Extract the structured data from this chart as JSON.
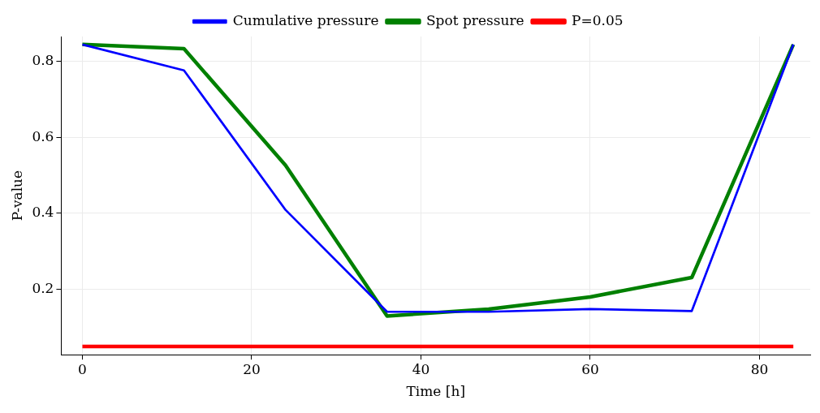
{
  "chart_data": {
    "type": "line",
    "xlabel": "Time [h]",
    "ylabel": "P-value",
    "x": [
      0,
      12,
      24,
      36,
      48,
      60,
      72,
      84
    ],
    "series": [
      {
        "name": "Cumulative pressure",
        "color": "#0000ff",
        "values": [
          0.844,
          0.776,
          0.409,
          0.141,
          0.141,
          0.148,
          0.143,
          0.844
        ]
      },
      {
        "name": "Spot pressure",
        "color": "#008000",
        "values": [
          0.844,
          0.833,
          0.526,
          0.13,
          0.148,
          0.18,
          0.231,
          0.844
        ]
      },
      {
        "name": "P=0.05",
        "color": "#ff0000",
        "x": [
          0,
          84
        ],
        "values": [
          0.05,
          0.05
        ]
      }
    ],
    "xlim": [
      -2.5,
      86
    ],
    "xticks": [
      0,
      20,
      40,
      60,
      80
    ],
    "ylim": [
      0.028,
      0.865
    ],
    "yticks": [
      0.2,
      0.4,
      0.6,
      0.8
    ],
    "grid": true,
    "legend": "top",
    "marker": "none",
    "line_style": "solid"
  }
}
